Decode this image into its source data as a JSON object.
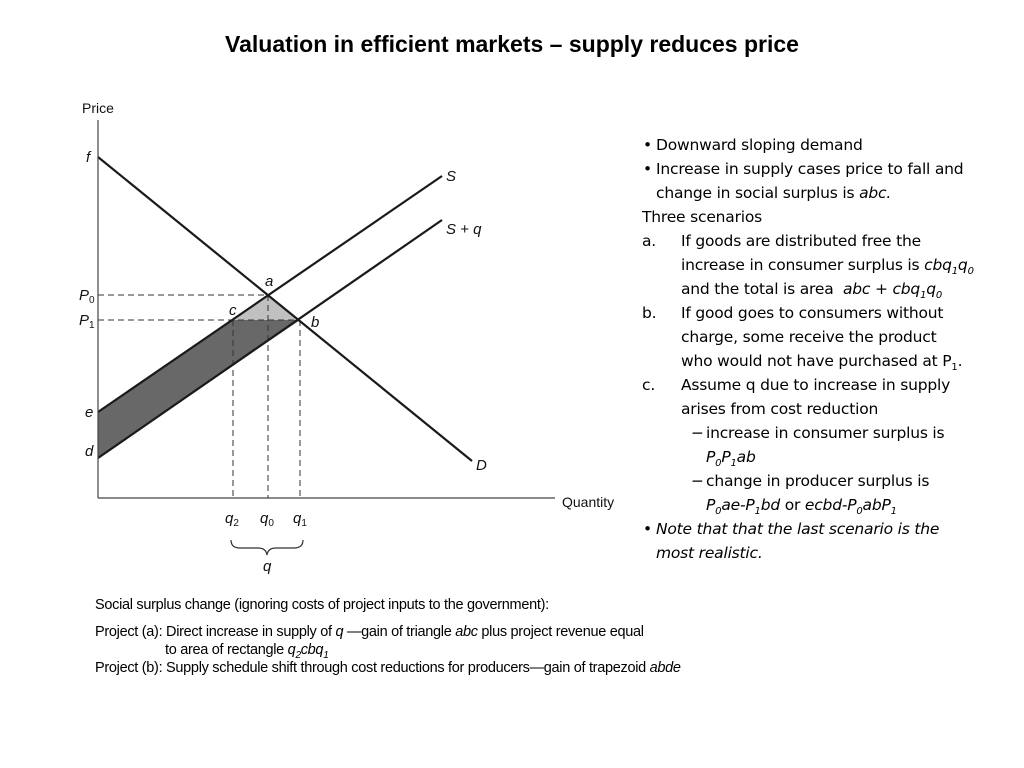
{
  "title": "Valuation in efficient markets – supply reduces price",
  "diagram": {
    "y_axis_label": "Price",
    "x_axis_label": "Quantity",
    "curve_labels": {
      "supply": "S",
      "supply_shifted": "S + q",
      "demand": "D"
    },
    "point_labels": {
      "f": "f",
      "a": "a",
      "b": "b",
      "c": "c",
      "e": "e",
      "d": "d",
      "P0": "P",
      "P0_sub": "0",
      "P1": "P",
      "P1_sub": "1",
      "q2": "q",
      "q2_sub": "2",
      "q0": "q",
      "q0_sub": "0",
      "q1": "q",
      "q1_sub": "1",
      "q_brace": "q"
    },
    "colors": {
      "triangle_abc": "#c0c0c0",
      "trapezoid_abde": "#686868"
    }
  },
  "notes": {
    "b1": "Downward sloping demand",
    "b2_l1": "Increase in supply cases price to fall and",
    "b2_l2a": "change in social surplus is ",
    "b2_l2b": "abc.",
    "heading": "Three scenarios",
    "a_lt": "a.",
    "a_l1": "If goods are distributed free the",
    "a_l2a": "increase in consumer surplus is ",
    "a_l2b": "cbq",
    "a_l2c": "1",
    "a_l2d": "q",
    "a_l2e": "0",
    "a_l3a": "and the total is area  ",
    "a_l3b": "abc + cbq",
    "a_l3c": "1",
    "a_l3d": "q",
    "a_l3e": "0",
    "b_lt": "b.",
    "b_l1": "If good goes to consumers without",
    "b_l2": "charge, some receive the product",
    "b_l3a": "who would not have purchased at P",
    "b_l3b": "1",
    "b_l3c": ".",
    "c_lt": "c.",
    "c_l1": "Assume q due to increase in supply",
    "c_l2": "arises from cost reduction",
    "dash": "−",
    "s1_l1": "increase in consumer surplus is",
    "s1_l2a": "P",
    "s1_l2b": "0",
    "s1_l2c": "P",
    "s1_l2d": "1",
    "s1_l2e": "ab",
    "s2_l1": "change in producer surplus is",
    "s2_l2a": "P",
    "s2_l2b": "0",
    "s2_l2c": "ae-P",
    "s2_l2d": "1",
    "s2_l2e": "bd",
    "s2_l2f": " or ",
    "s2_l2g": "ecbd-P",
    "s2_l2h": "0",
    "s2_l2i": "abP",
    "s2_l2j": "1",
    "b3_l1": "Note that that the last scenario is the",
    "b3_l2": "most realistic."
  },
  "caption": {
    "l1": "Social surplus change (ignoring costs of project inputs to the government):",
    "l2a": "Project (a): Direct increase in supply of ",
    "l2b": "q",
    "l2c": " —gain of triangle ",
    "l2d": "abc",
    "l2e": " plus project revenue equal",
    "l3a": "to area of rectangle ",
    "l3b": "q",
    "l3c": "2",
    "l3d": "cbq",
    "l3e": "1",
    "l4a": "Project (b): Supply schedule shift through cost reductions for producers—gain of trapezoid ",
    "l4b": "abde"
  }
}
